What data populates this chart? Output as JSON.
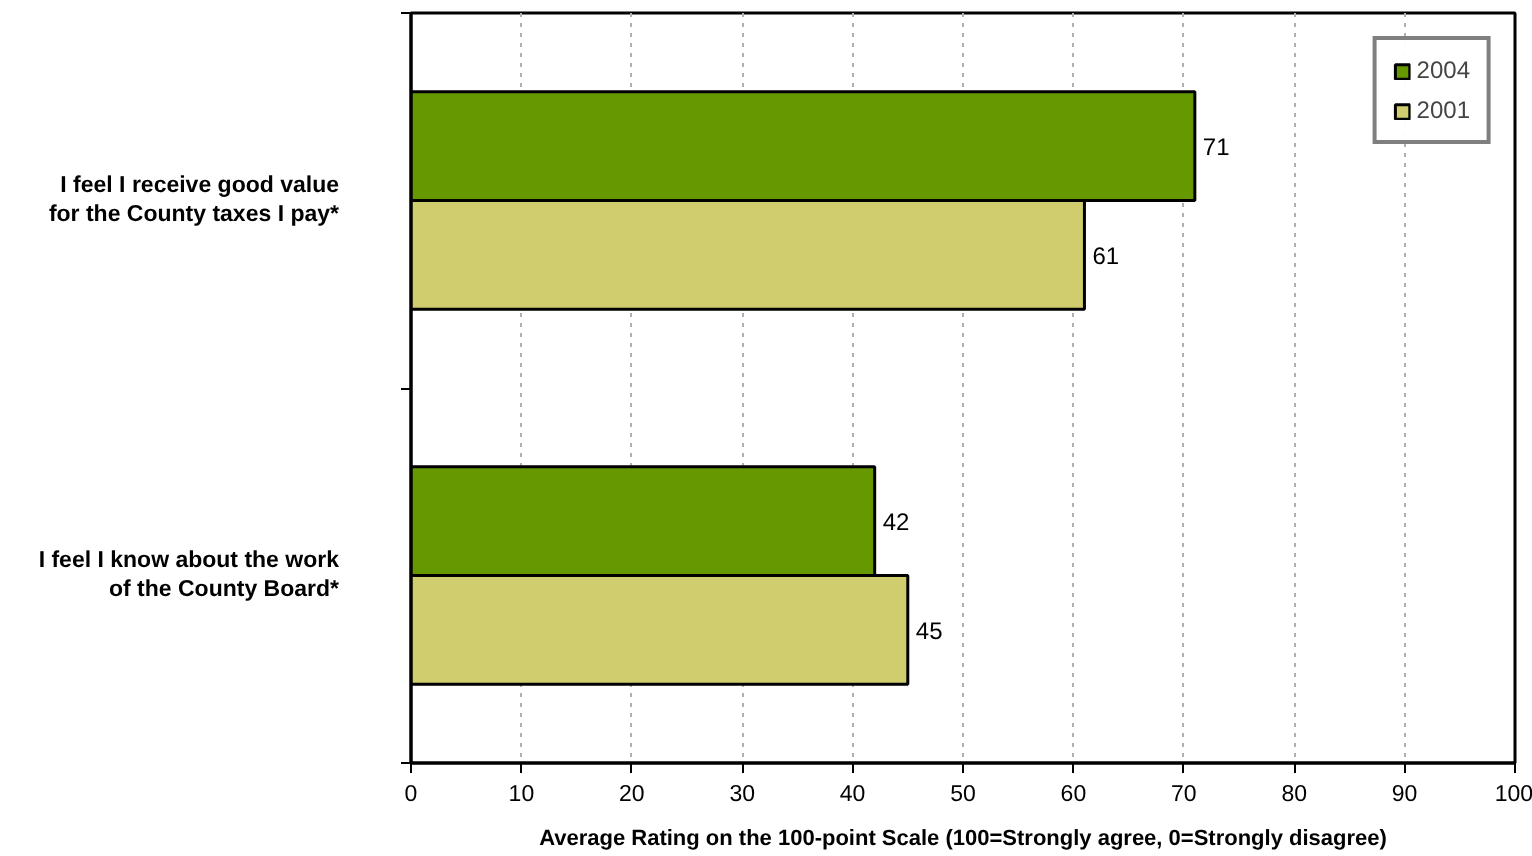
{
  "chart_data": {
    "type": "bar",
    "orientation": "horizontal",
    "categories": [
      "I feel I receive good value for the County taxes I pay*",
      "I feel I know about the work of the County Board*"
    ],
    "series": [
      {
        "name": "2004",
        "color": "#669900",
        "values": [
          71,
          42
        ]
      },
      {
        "name": "2001",
        "color": "#d0cd6e",
        "values": [
          61,
          45
        ]
      }
    ],
    "xlabel": "Average Rating on the 100-point Scale (100=Strongly agree, 0=Strongly disagree)",
    "xlim": [
      0,
      100
    ],
    "xticks": [
      0,
      10,
      20,
      30,
      40,
      50,
      60,
      70,
      80,
      90,
      100
    ],
    "grid": "x",
    "legend": "top right",
    "data_labels": true
  }
}
